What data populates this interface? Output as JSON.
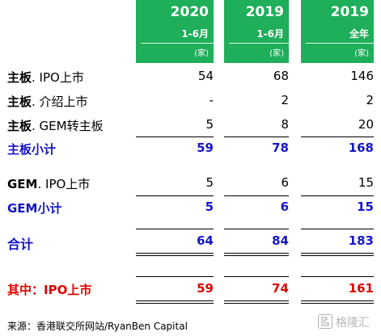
{
  "colors": {
    "header_green": "#1fae5a",
    "subtotal_blue": "#1515c8",
    "highlight_red": "#e00000"
  },
  "header": {
    "columns": [
      {
        "year": "2020",
        "period": "1-6月",
        "unit": "(家)"
      },
      {
        "year": "2019",
        "period": "1-6月",
        "unit": "(家)"
      },
      {
        "year": "2019",
        "period": "全年",
        "unit": "(家)"
      }
    ]
  },
  "rows": [
    {
      "label_bold": "主板",
      "label_rest": ". IPO上市",
      "values": [
        "54",
        "68",
        "146"
      ]
    },
    {
      "label_bold": "主板",
      "label_rest": ". 介绍上市",
      "values": [
        "-",
        "2",
        "2"
      ]
    },
    {
      "label_bold": "主板",
      "label_rest": ". GEM转主板",
      "values": [
        "5",
        "8",
        "20"
      ]
    },
    {
      "label": "主板小计",
      "values": [
        "59",
        "78",
        "168"
      ]
    },
    {
      "label_bold": "GEM",
      "label_rest": ". IPO上市",
      "values": [
        "5",
        "6",
        "15"
      ]
    },
    {
      "label": "GEM小计",
      "values": [
        "5",
        "6",
        "15"
      ]
    },
    {
      "label": "合计",
      "values": [
        "64",
        "84",
        "183"
      ]
    },
    {
      "label": "其中：IPO上市",
      "values": [
        "59",
        "74",
        "161"
      ]
    }
  ],
  "source": "来源：香港联交所网站/RyanBen Capital",
  "watermark": {
    "text": "格隆汇",
    "icon": "glh-logo-icon"
  }
}
